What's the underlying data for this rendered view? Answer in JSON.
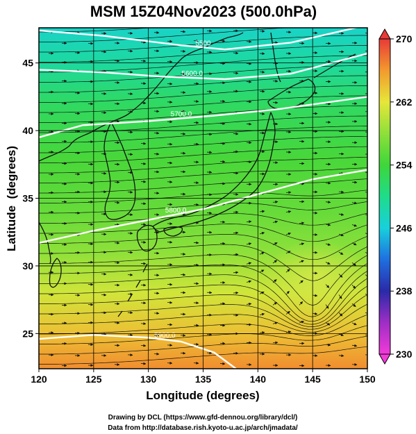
{
  "title": "MSM 15Z04Nov2023 (500.0hPa)",
  "chart_data": {
    "type": "heatmap",
    "title": "MSM 15Z04Nov2023 (500.0hPa)",
    "xlabel": "Longitude (degrees)",
    "ylabel": "Latitude  (degrees)",
    "xlim": [
      120,
      150
    ],
    "ylim": [
      22.4,
      47.6
    ],
    "x_ticks": [
      "120",
      "125",
      "130",
      "135",
      "140",
      "145",
      "150"
    ],
    "y_ticks": [
      "25",
      "30",
      "35",
      "40",
      "45"
    ],
    "grid": true,
    "colorbar": {
      "ticks": [
        "270",
        "262",
        "254",
        "246",
        "238",
        "230"
      ],
      "range": [
        230,
        270
      ]
    },
    "temperature_field": [
      {
        "lat": 47.6,
        "value": 247
      },
      {
        "lat": 45,
        "value": 249
      },
      {
        "lat": 42,
        "value": 252
      },
      {
        "lat": 38,
        "value": 254.5
      },
      {
        "lat": 34,
        "value": 256
      },
      {
        "lat": 31,
        "value": 258
      },
      {
        "lat": 28,
        "value": 261
      },
      {
        "lat": 25,
        "value": 264
      },
      {
        "lat": 22.4,
        "value": 266.5
      }
    ],
    "contours": [
      {
        "label": "5500",
        "points": [
          [
            120,
            47.4
          ],
          [
            126,
            47.0
          ],
          [
            133,
            46.3
          ],
          [
            137,
            46.0
          ],
          [
            143,
            46.5
          ],
          [
            150,
            47.8
          ]
        ]
      },
      {
        "label": "5600.0",
        "points": [
          [
            120,
            44.5
          ],
          [
            126,
            44.3
          ],
          [
            131,
            44.0
          ],
          [
            137,
            43.8
          ],
          [
            143,
            44.2
          ],
          [
            150,
            45.7
          ]
        ]
      },
      {
        "label": "5700.0",
        "points": [
          [
            120,
            39.5
          ],
          [
            124,
            40.4
          ],
          [
            130,
            40.7
          ],
          [
            136,
            41.1
          ],
          [
            142,
            41.6
          ],
          [
            150,
            42.5
          ]
        ]
      },
      {
        "label": "5800.0",
        "points": [
          [
            120,
            31.7
          ],
          [
            125,
            32.6
          ],
          [
            130,
            33.4
          ],
          [
            135,
            34.2
          ],
          [
            140,
            35.3
          ],
          [
            145,
            36.4
          ],
          [
            150,
            37.1
          ]
        ]
      },
      {
        "label": "5900.0",
        "points": [
          [
            120,
            24.6
          ],
          [
            125,
            24.9
          ],
          [
            130,
            24.7
          ],
          [
            133,
            24.4
          ],
          [
            136,
            23.6
          ],
          [
            138,
            22.4
          ]
        ]
      }
    ]
  },
  "footer": {
    "line1": "Drawing by DCL (https://www.gfd-dennou.org/library/dcl/)",
    "line2": "Data from http://database.rish.kyoto-u.ac.jp/arch/jmadata/"
  },
  "colors": {
    "background": "#ffffff",
    "contour": "#ffffff",
    "streamline": "#111111",
    "coast": "#111111"
  }
}
